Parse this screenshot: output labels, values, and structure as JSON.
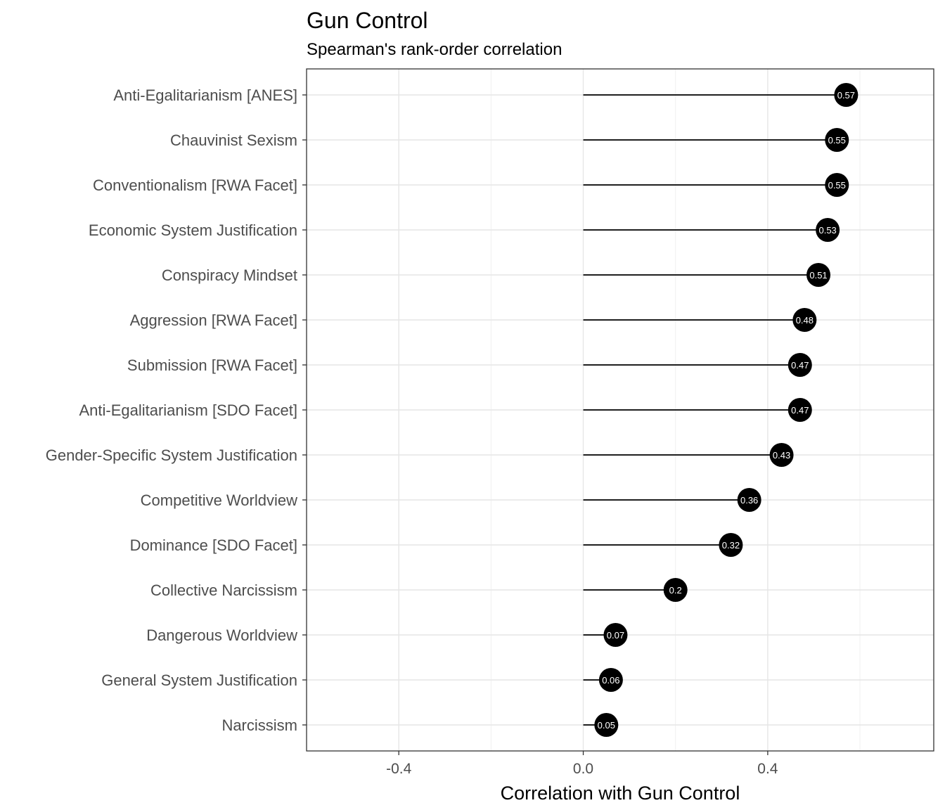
{
  "chart_data": {
    "type": "lollipop",
    "title": "Gun Control",
    "subtitle": "Spearman's rank-order correlation",
    "xlabel": "Correlation with Gun Control",
    "ylabel": "",
    "xlim": [
      -0.6,
      0.76
    ],
    "xticks": [
      -0.4,
      0.0,
      0.4
    ],
    "xtick_labels": [
      "-0.4",
      "0.0",
      "0.4"
    ],
    "x_minor_gridlines": [
      -0.6,
      -0.2,
      0.2,
      0.6
    ],
    "grid": true,
    "legend": "none",
    "point_color": "#000000",
    "label_color": "#ffffff",
    "categories": [
      "Anti-Egalitarianism [ANES]",
      "Chauvinist Sexism",
      "Conventionalism [RWA Facet]",
      "Economic System Justification",
      "Conspiracy Mindset",
      "Aggression [RWA Facet]",
      "Submission [RWA Facet]",
      "Anti-Egalitarianism [SDO Facet]",
      "Gender-Specific System Justification",
      "Competitive Worldview",
      "Dominance [SDO Facet]",
      "Collective Narcissism",
      "Dangerous Worldview",
      "General System Justification",
      "Narcissism"
    ],
    "values": [
      0.57,
      0.55,
      0.55,
      0.53,
      0.51,
      0.48,
      0.47,
      0.47,
      0.43,
      0.36,
      0.32,
      0.2,
      0.07,
      0.06,
      0.05
    ],
    "value_labels": [
      "0.57",
      "0.55",
      "0.55",
      "0.53",
      "0.51",
      "0.48",
      "0.47",
      "0.47",
      "0.43",
      "0.36",
      "0.32",
      "0.2",
      "0.07",
      "0.06",
      "0.05"
    ]
  }
}
